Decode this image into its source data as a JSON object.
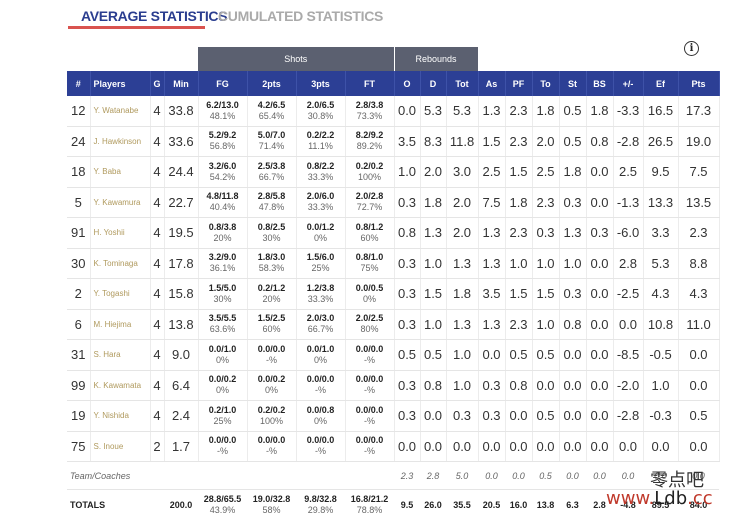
{
  "tabs": {
    "active": "AVERAGE STATISTICS",
    "inactive": "CUMULATED STATISTICS"
  },
  "groups": {
    "shots": "Shots",
    "rebounds": "Rebounds"
  },
  "columns": [
    "#",
    "Players",
    "G",
    "Min",
    "FG",
    "2pts",
    "3pts",
    "FT",
    "O",
    "D",
    "Tot",
    "As",
    "PF",
    "To",
    "St",
    "BS",
    "+/-",
    "Ef",
    "Pts"
  ],
  "players": [
    {
      "no": "12",
      "name": "Y. Watanabe",
      "g": "4",
      "min": "33.8",
      "fg": "6.2/13.0",
      "fgp": "48.1%",
      "p2": "4.2/6.5",
      "p2p": "65.4%",
      "p3": "2.0/6.5",
      "p3p": "30.8%",
      "ft": "2.8/3.8",
      "ftp": "73.3%",
      "o": "0.0",
      "d": "5.3",
      "tot": "5.3",
      "as": "1.3",
      "pf": "2.3",
      "to": "1.8",
      "st": "0.5",
      "bs": "1.8",
      "pm": "-3.3",
      "ef": "16.5",
      "pts": "17.3"
    },
    {
      "no": "24",
      "name": "J. Hawkinson",
      "g": "4",
      "min": "33.6",
      "fg": "5.2/9.2",
      "fgp": "56.8%",
      "p2": "5.0/7.0",
      "p2p": "71.4%",
      "p3": "0.2/2.2",
      "p3p": "11.1%",
      "ft": "8.2/9.2",
      "ftp": "89.2%",
      "o": "3.5",
      "d": "8.3",
      "tot": "11.8",
      "as": "1.5",
      "pf": "2.3",
      "to": "2.0",
      "st": "0.5",
      "bs": "0.8",
      "pm": "-2.8",
      "ef": "26.5",
      "pts": "19.0"
    },
    {
      "no": "18",
      "name": "Y. Baba",
      "g": "4",
      "min": "24.4",
      "fg": "3.2/6.0",
      "fgp": "54.2%",
      "p2": "2.5/3.8",
      "p2p": "66.7%",
      "p3": "0.8/2.2",
      "p3p": "33.3%",
      "ft": "0.2/0.2",
      "ftp": "100%",
      "o": "1.0",
      "d": "2.0",
      "tot": "3.0",
      "as": "2.5",
      "pf": "1.5",
      "to": "2.5",
      "st": "1.8",
      "bs": "0.0",
      "pm": "2.5",
      "ef": "9.5",
      "pts": "7.5"
    },
    {
      "no": "5",
      "name": "Y. Kawamura",
      "g": "4",
      "min": "22.7",
      "fg": "4.8/11.8",
      "fgp": "40.4%",
      "p2": "2.8/5.8",
      "p2p": "47.8%",
      "p3": "2.0/6.0",
      "p3p": "33.3%",
      "ft": "2.0/2.8",
      "ftp": "72.7%",
      "o": "0.3",
      "d": "1.8",
      "tot": "2.0",
      "as": "7.5",
      "pf": "1.8",
      "to": "2.3",
      "st": "0.3",
      "bs": "0.0",
      "pm": "-1.3",
      "ef": "13.3",
      "pts": "13.5"
    },
    {
      "no": "91",
      "name": "H. Yoshii",
      "g": "4",
      "min": "19.5",
      "fg": "0.8/3.8",
      "fgp": "20%",
      "p2": "0.8/2.5",
      "p2p": "30%",
      "p3": "0.0/1.2",
      "p3p": "0%",
      "ft": "0.8/1.2",
      "ftp": "60%",
      "o": "0.8",
      "d": "1.3",
      "tot": "2.0",
      "as": "1.3",
      "pf": "2.3",
      "to": "0.3",
      "st": "1.3",
      "bs": "0.3",
      "pm": "-6.0",
      "ef": "3.3",
      "pts": "2.3"
    },
    {
      "no": "30",
      "name": "K. Tominaga",
      "g": "4",
      "min": "17.8",
      "fg": "3.2/9.0",
      "fgp": "36.1%",
      "p2": "1.8/3.0",
      "p2p": "58.3%",
      "p3": "1.5/6.0",
      "p3p": "25%",
      "ft": "0.8/1.0",
      "ftp": "75%",
      "o": "0.3",
      "d": "1.0",
      "tot": "1.3",
      "as": "1.3",
      "pf": "1.0",
      "to": "1.0",
      "st": "1.0",
      "bs": "0.0",
      "pm": "2.8",
      "ef": "5.3",
      "pts": "8.8"
    },
    {
      "no": "2",
      "name": "Y. Togashi",
      "g": "4",
      "min": "15.8",
      "fg": "1.5/5.0",
      "fgp": "30%",
      "p2": "0.2/1.2",
      "p2p": "20%",
      "p3": "1.2/3.8",
      "p3p": "33.3%",
      "ft": "0.0/0.5",
      "ftp": "0%",
      "o": "0.3",
      "d": "1.5",
      "tot": "1.8",
      "as": "3.5",
      "pf": "1.5",
      "to": "1.5",
      "st": "0.3",
      "bs": "0.0",
      "pm": "-2.5",
      "ef": "4.3",
      "pts": "4.3"
    },
    {
      "no": "6",
      "name": "M. Hiejima",
      "g": "4",
      "min": "13.8",
      "fg": "3.5/5.5",
      "fgp": "63.6%",
      "p2": "1.5/2.5",
      "p2p": "60%",
      "p3": "2.0/3.0",
      "p3p": "66.7%",
      "ft": "2.0/2.5",
      "ftp": "80%",
      "o": "0.3",
      "d": "1.0",
      "tot": "1.3",
      "as": "1.3",
      "pf": "2.3",
      "to": "1.0",
      "st": "0.8",
      "bs": "0.0",
      "pm": "0.0",
      "ef": "10.8",
      "pts": "11.0"
    },
    {
      "no": "31",
      "name": "S. Hara",
      "g": "4",
      "min": "9.0",
      "fg": "0.0/1.0",
      "fgp": "0%",
      "p2": "0.0/0.0",
      "p2p": "-%",
      "p3": "0.0/1.0",
      "p3p": "0%",
      "ft": "0.0/0.0",
      "ftp": "-%",
      "o": "0.5",
      "d": "0.5",
      "tot": "1.0",
      "as": "0.0",
      "pf": "0.5",
      "to": "0.5",
      "st": "0.0",
      "bs": "0.0",
      "pm": "-8.5",
      "ef": "-0.5",
      "pts": "0.0"
    },
    {
      "no": "99",
      "name": "K. Kawamata",
      "g": "4",
      "min": "6.4",
      "fg": "0.0/0.2",
      "fgp": "0%",
      "p2": "0.0/0.2",
      "p2p": "0%",
      "p3": "0.0/0.0",
      "p3p": "-%",
      "ft": "0.0/0.0",
      "ftp": "-%",
      "o": "0.3",
      "d": "0.8",
      "tot": "1.0",
      "as": "0.3",
      "pf": "0.8",
      "to": "0.0",
      "st": "0.0",
      "bs": "0.0",
      "pm": "-2.0",
      "ef": "1.0",
      "pts": "0.0"
    },
    {
      "no": "19",
      "name": "Y. Nishida",
      "g": "4",
      "min": "2.4",
      "fg": "0.2/1.0",
      "fgp": "25%",
      "p2": "0.2/0.2",
      "p2p": "100%",
      "p3": "0.0/0.8",
      "p3p": "0%",
      "ft": "0.0/0.0",
      "ftp": "-%",
      "o": "0.3",
      "d": "0.0",
      "tot": "0.3",
      "as": "0.3",
      "pf": "0.0",
      "to": "0.5",
      "st": "0.0",
      "bs": "0.0",
      "pm": "-2.8",
      "ef": "-0.3",
      "pts": "0.5"
    },
    {
      "no": "75",
      "name": "S. Inoue",
      "g": "2",
      "min": "1.7",
      "fg": "0.0/0.0",
      "fgp": "-%",
      "p2": "0.0/0.0",
      "p2p": "-%",
      "p3": "0.0/0.0",
      "p3p": "-%",
      "ft": "0.0/0.0",
      "ftp": "-%",
      "o": "0.0",
      "d": "0.0",
      "tot": "0.0",
      "as": "0.0",
      "pf": "0.0",
      "to": "0.0",
      "st": "0.0",
      "bs": "0.0",
      "pm": "0.0",
      "ef": "0.0",
      "pts": "0.0"
    }
  ],
  "team_row": {
    "label": "Team/Coaches",
    "o": "2.3",
    "d": "2.8",
    "tot": "5.0",
    "as": "0.0",
    "pf": "0.0",
    "to": "0.5",
    "st": "0.0",
    "bs": "0.0",
    "pm": "0.0",
    "ef": "0.0",
    "pts": "0.0"
  },
  "totals": {
    "label": "TOTALS",
    "min": "200.0",
    "fg": "28.8/65.5",
    "fgp": "43.9%",
    "p2": "19.0/32.8",
    "p2p": "58%",
    "p3": "9.8/32.8",
    "p3p": "29.8%",
    "ft": "16.8/21.2",
    "ftp": "78.8%",
    "o": "9.5",
    "d": "26.0",
    "tot": "35.5",
    "as": "20.5",
    "pf": "16.0",
    "to": "13.8",
    "st": "6.3",
    "bs": "2.8",
    "pm": "-4.8",
    "ef": "89.5",
    "pts": "84.0"
  },
  "watermark": {
    "line1": "零点吧",
    "line2_a": "www.",
    "line2_b": "Ldb",
    "line2_c": ".cc"
  },
  "info_icon": "info-icon",
  "colors": {
    "header_blue": "#2c3f95",
    "group_gray": "#5b6070",
    "active_tab": "#2a3d8f",
    "tab_underline": "#d9534f",
    "player_name": "#b09a5e"
  }
}
